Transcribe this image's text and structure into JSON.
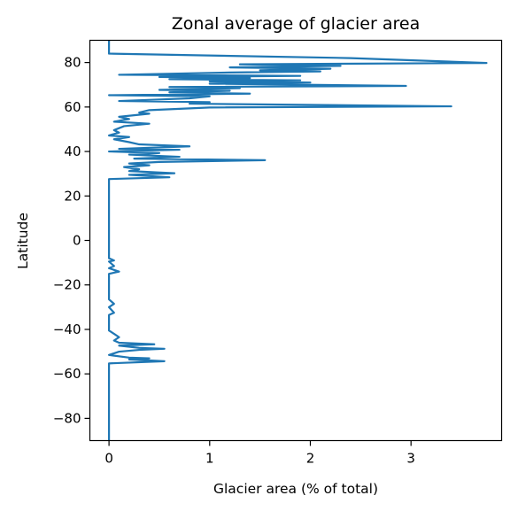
{
  "chart_data": {
    "type": "line",
    "title": "Zonal average of glacier area",
    "xlabel": "Glacier area (% of total)",
    "ylabel": "Latitude",
    "xlim": [
      -0.19,
      3.9
    ],
    "ylim": [
      -90,
      90
    ],
    "x_ticks": [
      0,
      1,
      2,
      3
    ],
    "x_tick_labels": [
      "0",
      "1",
      "2",
      "3"
    ],
    "y_ticks": [
      80,
      60,
      40,
      20,
      0,
      -20,
      -40,
      -60,
      -80
    ],
    "y_tick_labels": [
      "80",
      "60",
      "40",
      "20",
      "0",
      "−20",
      "−40",
      "−60",
      "−80"
    ],
    "grid": false,
    "line_color": "#1f77b4",
    "series": [
      {
        "points": [
          [
            0.0,
            90
          ],
          [
            0.0,
            84
          ],
          [
            2.4,
            82
          ],
          [
            3.75,
            79.8
          ],
          [
            1.3,
            79.2
          ],
          [
            2.3,
            78.5
          ],
          [
            1.2,
            77.8
          ],
          [
            2.2,
            77.2
          ],
          [
            1.5,
            76.5
          ],
          [
            2.1,
            76.0
          ],
          [
            1.2,
            75.5
          ],
          [
            0.1,
            74.5
          ],
          [
            1.9,
            74.0
          ],
          [
            0.5,
            73.5
          ],
          [
            1.4,
            73.0
          ],
          [
            0.6,
            72.5
          ],
          [
            1.9,
            72.0
          ],
          [
            1.0,
            71.5
          ],
          [
            2.0,
            71.0
          ],
          [
            1.0,
            70.5
          ],
          [
            2.95,
            69.5
          ],
          [
            0.6,
            69.0
          ],
          [
            1.3,
            68.5
          ],
          [
            0.5,
            67.7
          ],
          [
            1.2,
            67.3
          ],
          [
            0.6,
            66.6
          ],
          [
            1.4,
            66.0
          ],
          [
            0.0,
            65.3
          ],
          [
            1.0,
            64.8
          ],
          [
            0.8,
            63.9
          ],
          [
            0.1,
            62.7
          ],
          [
            1.0,
            62.2
          ],
          [
            0.8,
            61.5
          ],
          [
            3.4,
            60.3
          ],
          [
            1.0,
            59.8
          ],
          [
            0.4,
            58.6
          ],
          [
            0.3,
            57.5
          ],
          [
            0.4,
            57.0
          ],
          [
            0.1,
            55.6
          ],
          [
            0.2,
            54.6
          ],
          [
            0.05,
            53.4
          ],
          [
            0.4,
            52.5
          ],
          [
            0.15,
            51.4
          ],
          [
            0.05,
            49.6
          ],
          [
            0.1,
            48.5
          ],
          [
            0.0,
            47.2
          ],
          [
            0.2,
            46.5
          ],
          [
            0.05,
            45.5
          ],
          [
            0.2,
            44.2
          ],
          [
            0.3,
            43.2
          ],
          [
            0.8,
            42.3
          ],
          [
            0.1,
            41.2
          ],
          [
            0.7,
            40.8
          ],
          [
            0.0,
            40.0
          ],
          [
            0.5,
            39.3
          ],
          [
            0.2,
            38.6
          ],
          [
            0.7,
            37.6
          ],
          [
            0.25,
            36.8
          ],
          [
            1.55,
            36.1
          ],
          [
            0.5,
            35.3
          ],
          [
            0.2,
            34.6
          ],
          [
            0.4,
            33.8
          ],
          [
            0.15,
            33.0
          ],
          [
            0.3,
            32.0
          ],
          [
            0.2,
            31.2
          ],
          [
            0.65,
            30.2
          ],
          [
            0.2,
            29.5
          ],
          [
            0.6,
            28.4
          ],
          [
            0.0,
            27.6
          ],
          [
            0.0,
            -8.0
          ],
          [
            0.05,
            -9.0
          ],
          [
            0.0,
            -9.5
          ],
          [
            0.05,
            -11.5
          ],
          [
            0.0,
            -12.5
          ],
          [
            0.1,
            -14.0
          ],
          [
            0.0,
            -15.0
          ],
          [
            0.0,
            -26.5
          ],
          [
            0.05,
            -28.5
          ],
          [
            0.0,
            -30.0
          ],
          [
            0.05,
            -32.5
          ],
          [
            0.0,
            -33.5
          ],
          [
            0.0,
            -40.5
          ],
          [
            0.05,
            -42.0
          ],
          [
            0.1,
            -43.5
          ],
          [
            0.05,
            -45.0
          ],
          [
            0.1,
            -46.0
          ],
          [
            0.45,
            -46.7
          ],
          [
            0.1,
            -47.3
          ],
          [
            0.3,
            -48.3
          ],
          [
            0.55,
            -48.7
          ],
          [
            0.3,
            -49.2
          ],
          [
            0.1,
            -50.0
          ],
          [
            0.0,
            -51.5
          ],
          [
            0.2,
            -52.7
          ],
          [
            0.4,
            -53.0
          ],
          [
            0.2,
            -53.5
          ],
          [
            0.55,
            -54.3
          ],
          [
            0.0,
            -55.3
          ],
          [
            0.0,
            -90.0
          ]
        ]
      }
    ]
  }
}
